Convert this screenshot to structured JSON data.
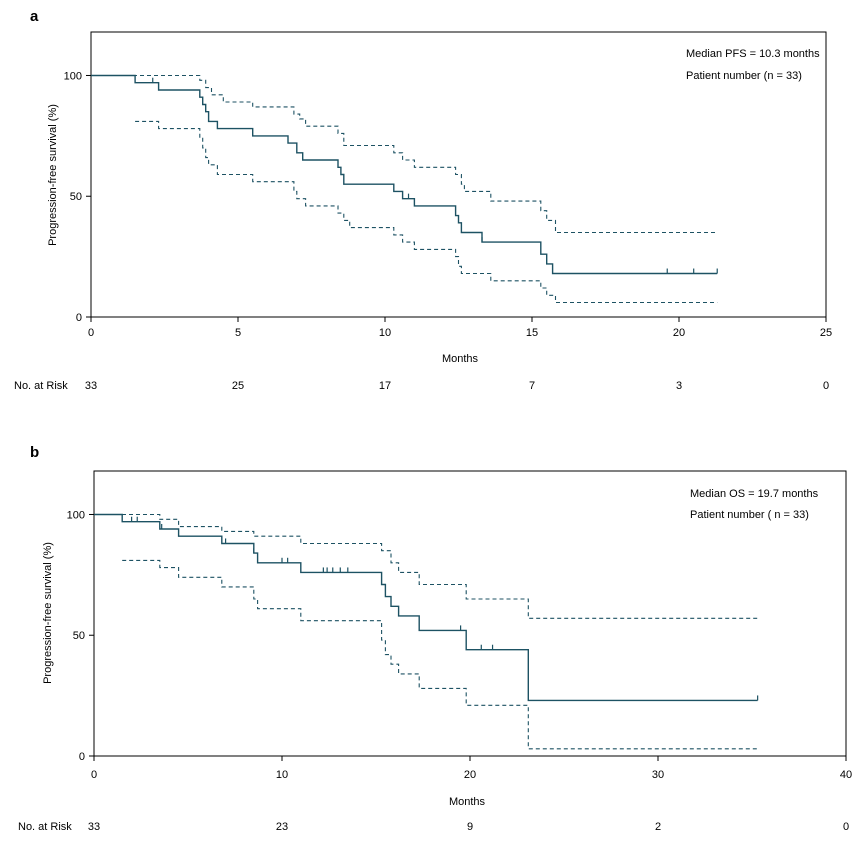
{
  "colors": {
    "curve": "#1d5263",
    "axis": "#000000"
  },
  "chart_data": [
    {
      "type": "line",
      "panel_label": "a",
      "xlabel": "Months",
      "ylabel": "Progression-free survival (%)",
      "xlim": [
        0,
        25
      ],
      "ylim": [
        0,
        118
      ],
      "xticks": [
        0,
        5,
        10,
        15,
        20,
        25
      ],
      "yticks": [
        0,
        50,
        100
      ],
      "annotations": [
        "Median PFS = 10.3 months",
        "Patient number (n = 33)"
      ],
      "risk_label": "No. at Risk",
      "risk_times": [
        0,
        5,
        10,
        15,
        20,
        25
      ],
      "risk_values": [
        "33",
        "25",
        "17",
        "7",
        "3",
        "0"
      ],
      "series": [
        {
          "name": "Kaplan-Meier estimate",
          "style": "solid",
          "points": [
            [
              0,
              100
            ],
            [
              1.5,
              100
            ],
            [
              1.5,
              97
            ],
            [
              2.3,
              97
            ],
            [
              2.3,
              94
            ],
            [
              3.7,
              94
            ],
            [
              3.7,
              91
            ],
            [
              3.8,
              91
            ],
            [
              3.8,
              88
            ],
            [
              3.9,
              88
            ],
            [
              3.9,
              85
            ],
            [
              4.0,
              85
            ],
            [
              4.0,
              81
            ],
            [
              4.3,
              81
            ],
            [
              4.3,
              78
            ],
            [
              5.5,
              78
            ],
            [
              5.5,
              75
            ],
            [
              6.7,
              75
            ],
            [
              6.7,
              72
            ],
            [
              7.0,
              72
            ],
            [
              7.0,
              68
            ],
            [
              7.2,
              68
            ],
            [
              7.2,
              65
            ],
            [
              8.4,
              65
            ],
            [
              8.4,
              62
            ],
            [
              8.5,
              62
            ],
            [
              8.5,
              59
            ],
            [
              8.6,
              59
            ],
            [
              8.6,
              55
            ],
            [
              10.3,
              55
            ],
            [
              10.3,
              52
            ],
            [
              10.6,
              52
            ],
            [
              10.6,
              49
            ],
            [
              11.0,
              49
            ],
            [
              11.0,
              46
            ],
            [
              12.4,
              46
            ],
            [
              12.4,
              42
            ],
            [
              12.5,
              42
            ],
            [
              12.5,
              39
            ],
            [
              12.6,
              39
            ],
            [
              12.6,
              35
            ],
            [
              13.3,
              35
            ],
            [
              13.3,
              31
            ],
            [
              15.3,
              31
            ],
            [
              15.3,
              26
            ],
            [
              15.5,
              26
            ],
            [
              15.5,
              22
            ],
            [
              15.7,
              22
            ],
            [
              15.7,
              18
            ],
            [
              21.3,
              18
            ]
          ],
          "censor_times": [
            2.1,
            10.8,
            13.3,
            19.6,
            20.5,
            21.3
          ]
        },
        {
          "name": "Upper 95% CI",
          "style": "dashed",
          "points": [
            [
              0,
              100
            ],
            [
              1.4,
              100
            ],
            [
              1.4,
              100
            ],
            [
              3.7,
              100
            ],
            [
              3.7,
              98
            ],
            [
              3.9,
              98
            ],
            [
              3.9,
              95
            ],
            [
              4.1,
              95
            ],
            [
              4.1,
              92
            ],
            [
              4.5,
              92
            ],
            [
              4.5,
              89
            ],
            [
              5.5,
              89
            ],
            [
              5.5,
              87
            ],
            [
              6.9,
              87
            ],
            [
              6.9,
              84
            ],
            [
              7.1,
              84
            ],
            [
              7.1,
              82
            ],
            [
              7.3,
              82
            ],
            [
              7.3,
              79
            ],
            [
              8.4,
              79
            ],
            [
              8.4,
              76
            ],
            [
              8.6,
              76
            ],
            [
              8.6,
              71
            ],
            [
              10.3,
              71
            ],
            [
              10.3,
              68
            ],
            [
              10.6,
              68
            ],
            [
              10.6,
              65
            ],
            [
              11.0,
              65
            ],
            [
              11.0,
              62
            ],
            [
              12.4,
              62
            ],
            [
              12.4,
              59
            ],
            [
              12.6,
              59
            ],
            [
              12.6,
              55
            ],
            [
              12.7,
              55
            ],
            [
              12.7,
              52
            ],
            [
              13.6,
              52
            ],
            [
              13.6,
              48
            ],
            [
              15.3,
              48
            ],
            [
              15.3,
              44
            ],
            [
              15.5,
              44
            ],
            [
              15.5,
              40
            ],
            [
              15.8,
              40
            ],
            [
              15.8,
              35
            ],
            [
              21.3,
              35
            ]
          ]
        },
        {
          "name": "Lower 95% CI",
          "style": "dashed",
          "points": [
            [
              1.5,
              81
            ],
            [
              2.3,
              81
            ],
            [
              2.3,
              78
            ],
            [
              3.7,
              78
            ],
            [
              3.7,
              74
            ],
            [
              3.8,
              74
            ],
            [
              3.8,
              70
            ],
            [
              3.9,
              70
            ],
            [
              3.9,
              66
            ],
            [
              4.0,
              66
            ],
            [
              4.0,
              63
            ],
            [
              4.3,
              63
            ],
            [
              4.3,
              59
            ],
            [
              5.5,
              59
            ],
            [
              5.5,
              56
            ],
            [
              6.9,
              56
            ],
            [
              6.9,
              52
            ],
            [
              7.0,
              52
            ],
            [
              7.0,
              49
            ],
            [
              7.3,
              49
            ],
            [
              7.3,
              46
            ],
            [
              8.4,
              46
            ],
            [
              8.4,
              43
            ],
            [
              8.6,
              43
            ],
            [
              8.6,
              40
            ],
            [
              8.8,
              40
            ],
            [
              8.8,
              37
            ],
            [
              10.3,
              37
            ],
            [
              10.3,
              34
            ],
            [
              10.6,
              34
            ],
            [
              10.6,
              31
            ],
            [
              11.0,
              31
            ],
            [
              11.0,
              28
            ],
            [
              12.4,
              28
            ],
            [
              12.4,
              25
            ],
            [
              12.5,
              25
            ],
            [
              12.5,
              21
            ],
            [
              12.6,
              21
            ],
            [
              12.6,
              18
            ],
            [
              13.6,
              18
            ],
            [
              13.6,
              15
            ],
            [
              15.3,
              15
            ],
            [
              15.3,
              12
            ],
            [
              15.5,
              12
            ],
            [
              15.5,
              9
            ],
            [
              15.8,
              9
            ],
            [
              15.8,
              6
            ],
            [
              21.3,
              6
            ]
          ]
        }
      ]
    },
    {
      "type": "line",
      "panel_label": "b",
      "xlabel": "Months",
      "ylabel": "Progression-free survival (%)",
      "xlim": [
        0,
        40
      ],
      "ylim": [
        0,
        118
      ],
      "xticks": [
        0,
        10,
        20,
        30,
        40
      ],
      "yticks": [
        0,
        50,
        100
      ],
      "annotations": [
        "Median OS = 19.7 months",
        "Patient number ( n = 33)"
      ],
      "risk_label": "No. at Risk",
      "risk_times": [
        0,
        10,
        20,
        30,
        40
      ],
      "risk_values": [
        "33",
        "23",
        "9",
        "2",
        "0"
      ],
      "series": [
        {
          "name": "Kaplan-Meier estimate",
          "style": "solid",
          "points": [
            [
              0,
              100
            ],
            [
              1.5,
              100
            ],
            [
              1.5,
              97
            ],
            [
              3.5,
              97
            ],
            [
              3.5,
              94
            ],
            [
              4.5,
              94
            ],
            [
              4.5,
              91
            ],
            [
              6.8,
              91
            ],
            [
              6.8,
              88
            ],
            [
              8.5,
              88
            ],
            [
              8.5,
              84
            ],
            [
              8.7,
              84
            ],
            [
              8.7,
              80
            ],
            [
              11.0,
              80
            ],
            [
              11.0,
              76
            ],
            [
              15.3,
              76
            ],
            [
              15.3,
              71
            ],
            [
              15.5,
              71
            ],
            [
              15.5,
              66
            ],
            [
              15.8,
              66
            ],
            [
              15.8,
              62
            ],
            [
              16.2,
              62
            ],
            [
              16.2,
              58
            ],
            [
              17.3,
              58
            ],
            [
              17.3,
              52
            ],
            [
              19.8,
              52
            ],
            [
              19.8,
              44
            ],
            [
              23.1,
              44
            ],
            [
              23.1,
              23
            ],
            [
              35.3,
              23
            ]
          ],
          "censor_times": [
            2.0,
            2.3,
            3.6,
            7.0,
            8.5,
            10.0,
            10.3,
            12.2,
            12.4,
            12.7,
            13.1,
            13.5,
            19.5,
            20.6,
            21.2,
            35.3
          ]
        },
        {
          "name": "Upper 95% CI",
          "style": "dashed",
          "points": [
            [
              0,
              100
            ],
            [
              3.5,
              100
            ],
            [
              3.5,
              98
            ],
            [
              4.5,
              98
            ],
            [
              4.5,
              95
            ],
            [
              6.8,
              95
            ],
            [
              6.8,
              93
            ],
            [
              8.5,
              93
            ],
            [
              8.5,
              91
            ],
            [
              11.0,
              91
            ],
            [
              11.0,
              88
            ],
            [
              15.3,
              88
            ],
            [
              15.3,
              85
            ],
            [
              15.8,
              85
            ],
            [
              15.8,
              80
            ],
            [
              16.2,
              80
            ],
            [
              16.2,
              76
            ],
            [
              17.3,
              76
            ],
            [
              17.3,
              71
            ],
            [
              19.8,
              71
            ],
            [
              19.8,
              65
            ],
            [
              23.1,
              65
            ],
            [
              23.1,
              57
            ],
            [
              35.3,
              57
            ]
          ]
        },
        {
          "name": "Lower 95% CI",
          "style": "dashed",
          "points": [
            [
              1.5,
              81
            ],
            [
              3.5,
              81
            ],
            [
              3.5,
              78
            ],
            [
              4.5,
              78
            ],
            [
              4.5,
              74
            ],
            [
              6.8,
              74
            ],
            [
              6.8,
              70
            ],
            [
              8.5,
              70
            ],
            [
              8.5,
              65
            ],
            [
              8.7,
              65
            ],
            [
              8.7,
              61
            ],
            [
              11.0,
              61
            ],
            [
              11.0,
              56
            ],
            [
              15.3,
              56
            ],
            [
              15.3,
              48
            ],
            [
              15.5,
              48
            ],
            [
              15.5,
              42
            ],
            [
              15.8,
              42
            ],
            [
              15.8,
              38
            ],
            [
              16.2,
              38
            ],
            [
              16.2,
              34
            ],
            [
              17.3,
              34
            ],
            [
              17.3,
              28
            ],
            [
              19.8,
              28
            ],
            [
              19.8,
              21
            ],
            [
              23.1,
              21
            ],
            [
              23.1,
              3
            ],
            [
              35.3,
              3
            ]
          ]
        }
      ]
    }
  ]
}
